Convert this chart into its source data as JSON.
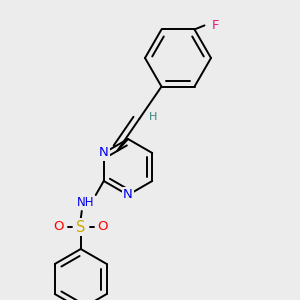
{
  "bg_color": "#ececec",
  "atom_colors": {
    "C": "#000000",
    "N": "#0000ee",
    "O": "#ff0000",
    "S": "#ccaa00",
    "F": "#dd2277",
    "H": "#338888"
  },
  "bond_lw": 1.4,
  "font_size": 8.5
}
